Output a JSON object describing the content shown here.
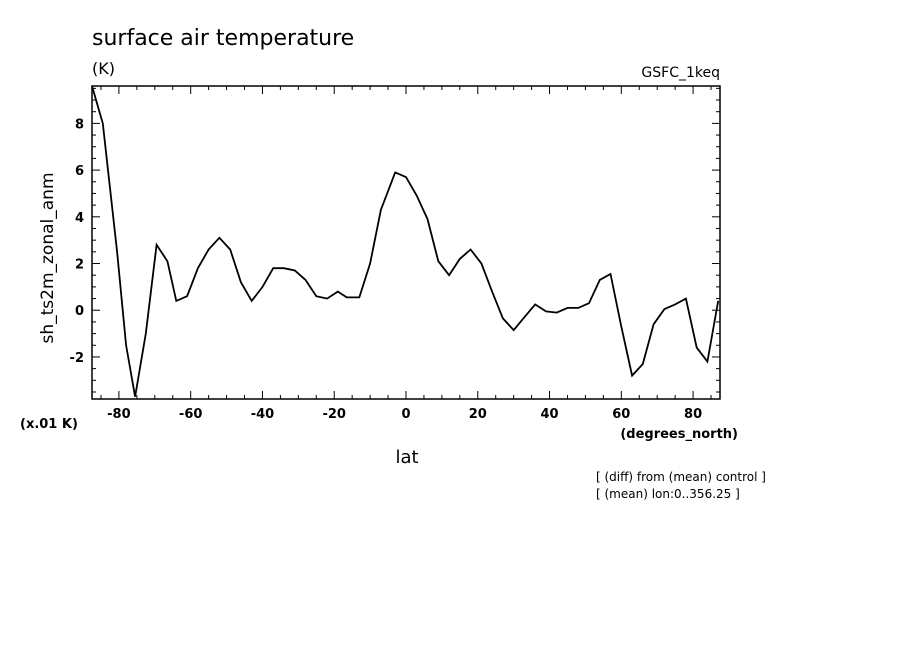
{
  "chart_data": {
    "type": "line",
    "title": "surface air temperature",
    "units": "(K)",
    "model": "GSFC_1keq",
    "ylabel": "sh_ts2m_zonal_anm",
    "yscale_note": "(x.01 K)",
    "xlabel": "lat",
    "xunits": "(degrees_north)",
    "notes": [
      "[ (diff) from (mean) control ]",
      "[ (mean) lon:0..356.25 ]"
    ],
    "xlim": [
      -87.5,
      87.5
    ],
    "ylim": [
      -3.8,
      9.6
    ],
    "xticks": [
      -80,
      -60,
      -40,
      -20,
      0,
      20,
      40,
      60,
      80
    ],
    "yticks": [
      -2,
      0,
      2,
      4,
      6,
      8
    ],
    "series": [
      {
        "name": "sh_ts2m_zonal_anm",
        "x": [
          -87.5,
          -84.5,
          -80.5,
          -78,
          -75.5,
          -72.5,
          -69.5,
          -66.5,
          -64,
          -61,
          -58,
          -55,
          -52,
          -49,
          -46,
          -43,
          -40,
          -37,
          -34,
          -31,
          -28,
          -25,
          -22,
          -19,
          -16.5,
          -13,
          -10,
          -7,
          -3,
          0,
          3,
          6,
          9,
          12,
          15,
          18,
          21,
          24,
          27,
          30,
          33,
          36,
          39,
          42,
          45,
          48,
          51,
          54,
          57,
          60,
          63,
          66,
          69,
          72,
          75,
          78,
          81,
          84,
          87
        ],
        "y": [
          9.6,
          8.0,
          2.5,
          -1.5,
          -3.7,
          -1.0,
          2.8,
          2.1,
          0.4,
          0.6,
          1.8,
          2.6,
          3.1,
          2.6,
          1.2,
          0.4,
          1.0,
          1.8,
          1.8,
          1.7,
          1.3,
          0.6,
          0.5,
          0.8,
          0.55,
          0.55,
          2.0,
          4.3,
          5.9,
          5.7,
          4.9,
          3.9,
          2.1,
          1.5,
          2.2,
          2.6,
          2.0,
          0.8,
          -0.35,
          -0.85,
          -0.3,
          0.25,
          -0.05,
          -0.1,
          0.1,
          0.1,
          0.3,
          1.3,
          1.55,
          -0.7,
          -2.8,
          -2.3,
          -0.6,
          0.05,
          0.25,
          0.5,
          -1.6,
          -2.2,
          0.4
        ]
      }
    ]
  }
}
